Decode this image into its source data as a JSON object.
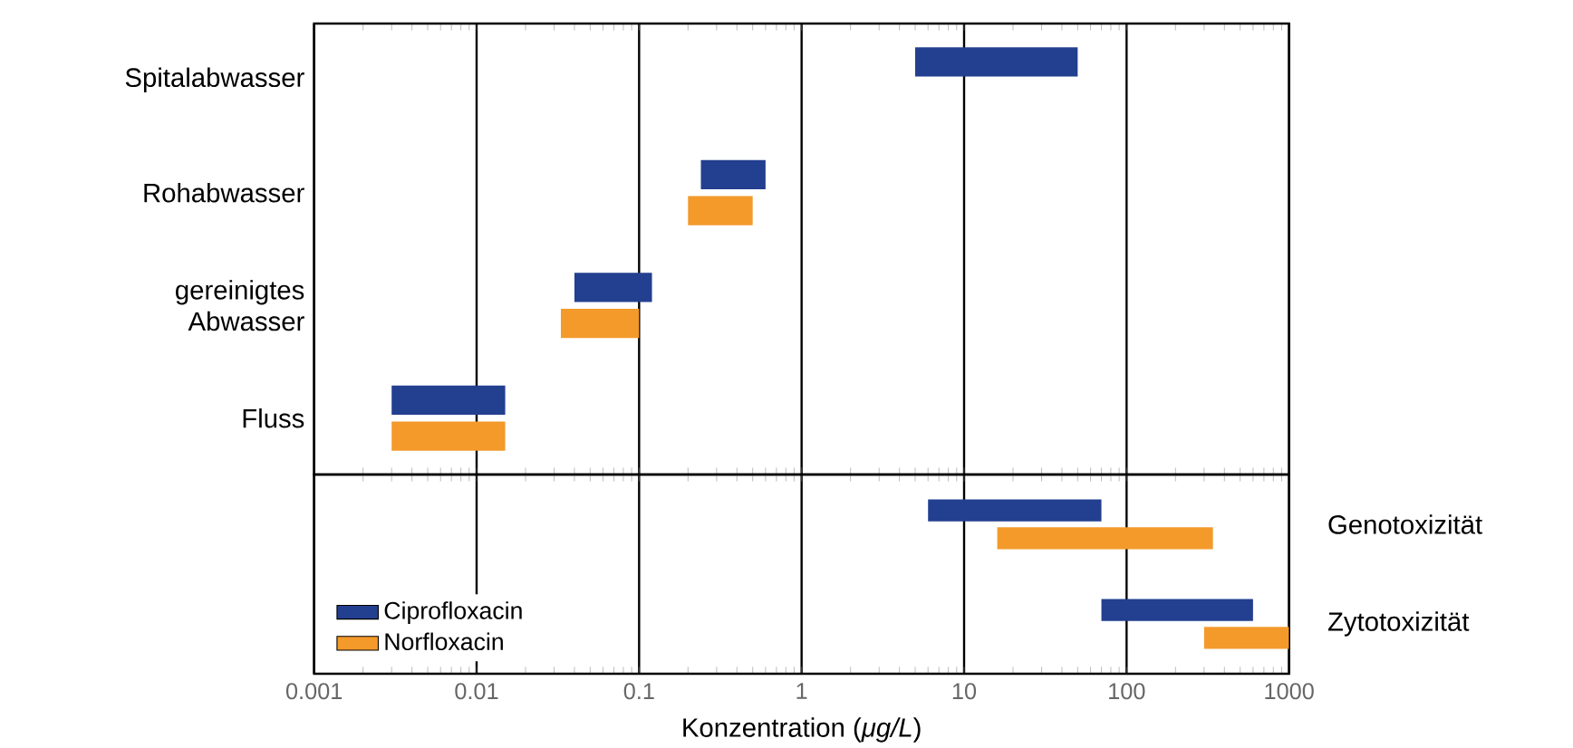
{
  "chart_data": [
    {
      "type": "bar",
      "orientation": "horizontal",
      "log": "x",
      "grid": "x",
      "legend": false,
      "tick_labels": "y",
      "categories": [
        "Spitalabwasser",
        "Rohabwasser",
        "gereinigtes Abwasser",
        "Fluss"
      ],
      "xlim": [
        0.001,
        1000
      ],
      "xticks": [
        0.001,
        0.01,
        0.1,
        1,
        10,
        100,
        1000
      ],
      "series": [
        {
          "color": "#233f8f",
          "base": [
            5,
            0.24,
            0.04,
            0.003
          ],
          "values": [
            45,
            0.36,
            0.08,
            0.012
          ]
        },
        {
          "color": "#f39a2b",
          "base": [
            null,
            0.2,
            0.033,
            0.003
          ],
          "values": [
            null,
            0.3,
            0.067,
            0.012
          ]
        }
      ]
    },
    {
      "type": "bar",
      "orientation": "horizontal",
      "log": "x",
      "grid": "x",
      "legend": "bottom left",
      "categories": [
        "Genotoxizität",
        "Zytotoxizität"
      ],
      "xlabel": "Konzentration (*μg/L*)",
      "xlim": [
        0.001,
        1000
      ],
      "xticks": [
        0.001,
        0.01,
        0.1,
        1,
        10,
        100,
        1000
      ],
      "series": [
        {
          "name": "Ciprofloxacin",
          "color": "#233f8f",
          "base": [
            6,
            70
          ],
          "values": [
            64,
            530
          ]
        },
        {
          "name": "Norfloxacin",
          "color": "#f39a2b",
          "base": [
            16,
            300
          ],
          "values": [
            324,
            700
          ]
        }
      ]
    }
  ]
}
